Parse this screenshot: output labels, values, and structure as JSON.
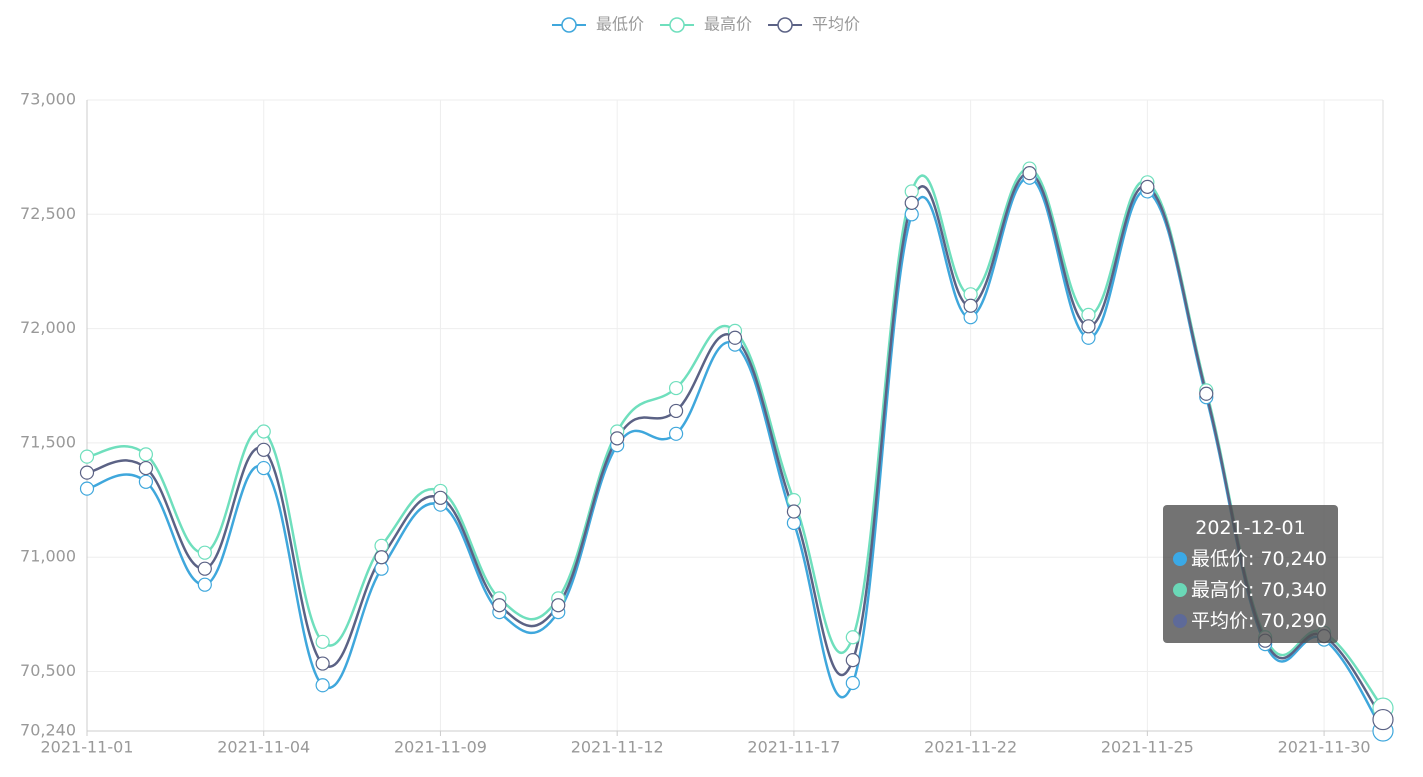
{
  "chart_data": {
    "type": "line",
    "smooth": true,
    "grid": true,
    "legend": "top",
    "categories": [
      "2021-11-01",
      null,
      null,
      "2021-11-04",
      null,
      null,
      "2021-11-09",
      null,
      null,
      "2021-11-12",
      null,
      null,
      "2021-11-17",
      null,
      null,
      "2021-11-22",
      null,
      null,
      "2021-11-25",
      null,
      null,
      "2021-11-30",
      null
    ],
    "series": [
      {
        "name": "最低价",
        "color": "#3fa7dc",
        "values": [
          71300,
          71330,
          70880,
          71390,
          70440,
          70950,
          71230,
          70760,
          70760,
          71490,
          71540,
          71930,
          71150,
          70450,
          72500,
          72050,
          72660,
          71960,
          72600,
          71700,
          70620,
          70640,
          70240
        ]
      },
      {
        "name": "最高价",
        "color": "#6fdfbd",
        "values": [
          71440,
          71450,
          71020,
          71550,
          70630,
          71050,
          71290,
          70820,
          70820,
          71550,
          71740,
          71990,
          71250,
          70650,
          72600,
          72150,
          72700,
          72060,
          72640,
          71730,
          70650,
          70670,
          70340
        ]
      },
      {
        "name": "平均价",
        "color": "#5b6285",
        "values": [
          71370,
          71390,
          70950,
          71470,
          70535,
          71000,
          71260,
          70790,
          70790,
          71520,
          71640,
          71960,
          71200,
          70550,
          72550,
          72100,
          72680,
          72010,
          72620,
          71715,
          70635,
          70655,
          70290
        ]
      }
    ],
    "ylim": [
      70240,
      73000
    ],
    "yticks": [
      {
        "value": 70240,
        "label": "70,240"
      },
      {
        "value": 70500,
        "label": "70,500"
      },
      {
        "value": 71000,
        "label": "71,000"
      },
      {
        "value": 71500,
        "label": "71,500"
      },
      {
        "value": 72000,
        "label": "72,000"
      },
      {
        "value": 72500,
        "label": "72,500"
      },
      {
        "value": 73000,
        "label": "73,000"
      }
    ],
    "tooltip": {
      "title": "2021-12-01",
      "index": 22,
      "items": [
        "最低价: 70,240",
        "最高价: 70,340",
        "平均价: 70,290"
      ]
    }
  }
}
